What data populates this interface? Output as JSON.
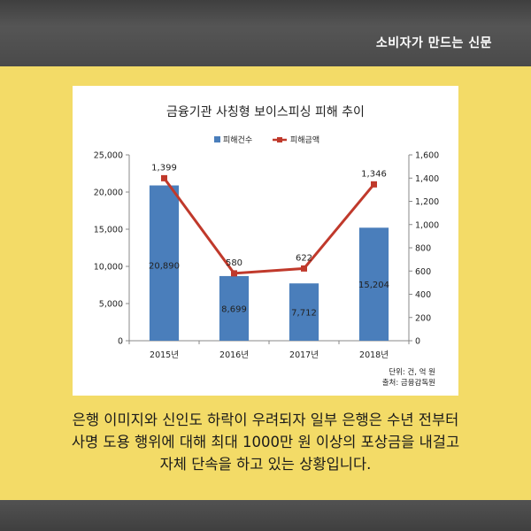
{
  "header": {
    "brand": "소비자가 만드는 신문"
  },
  "chart_data": {
    "type": "bar+line",
    "title": "금융기관 사칭형 보이스피싱 피해 추이",
    "categories": [
      "2015년",
      "2016년",
      "2017년",
      "2018년"
    ],
    "series": [
      {
        "name": "피해건수",
        "type": "bar",
        "axis": "left",
        "color": "#4a7ebb",
        "values": [
          20890,
          8699,
          7712,
          15204
        ],
        "labels": [
          "20,890",
          "8,699",
          "7,712",
          "15,204"
        ]
      },
      {
        "name": "피해금액",
        "type": "line",
        "axis": "right",
        "color": "#c0392b",
        "values": [
          1399,
          580,
          622,
          1346
        ],
        "labels": [
          "1,399",
          "580",
          "622",
          "1,346"
        ]
      }
    ],
    "y_left": {
      "range": [
        0,
        25000
      ],
      "ticks": [
        0,
        5000,
        10000,
        15000,
        20000,
        25000
      ],
      "tick_labels": [
        "0",
        "5,000",
        "10,000",
        "15,000",
        "20,000",
        "25,000"
      ]
    },
    "y_right": {
      "range": [
        0,
        1600
      ],
      "ticks": [
        0,
        200,
        400,
        600,
        800,
        1000,
        1200,
        1400,
        1600
      ],
      "tick_labels": [
        "0",
        "200",
        "400",
        "600",
        "800",
        "1,000",
        "1,200",
        "1,400",
        "1,600"
      ]
    },
    "legend_position": "top",
    "grid": false,
    "notes": [
      "단위: 건, 억 원",
      "출처: 금융감독원"
    ]
  },
  "caption": {
    "lines": [
      "은행 이미지와 신인도 하락이 우려되자 일부 은행은 수년 전부터",
      "사명  도용 행위에 대해 최대 1000만 원 이상의 포상금을 내걸고",
      "자체 단속을 하고 있는 상황입니다."
    ]
  }
}
